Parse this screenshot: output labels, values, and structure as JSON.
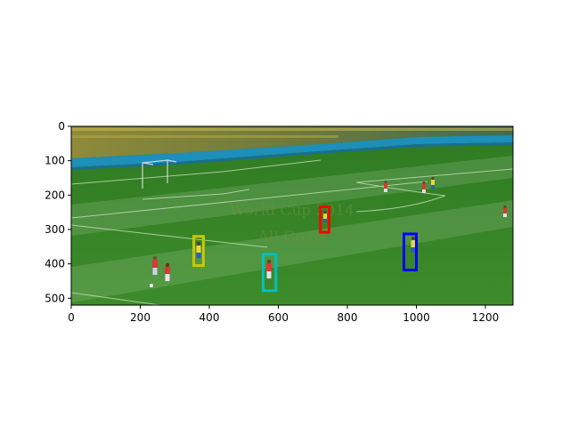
{
  "chart_data": {
    "type": "image",
    "image_width": 1280,
    "image_height": 520,
    "xlim": [
      0,
      1280
    ],
    "ylim": [
      520,
      0
    ],
    "x_ticks": [
      0,
      200,
      400,
      600,
      800,
      1000,
      1200
    ],
    "y_ticks": [
      0,
      100,
      200,
      300,
      400,
      500
    ],
    "xlabel": "",
    "ylabel": "",
    "title": "",
    "watermark_lines": [
      "World Cup 2014",
      "All Goals"
    ],
    "bounding_boxes": [
      {
        "color": "#ff0000",
        "x": [
          722,
          747
        ],
        "y": [
          234,
          308
        ]
      },
      {
        "color": "#c8c800",
        "x": [
          355,
          383
        ],
        "y": [
          320,
          405
        ]
      },
      {
        "color": "#00bfbf",
        "x": [
          556,
          593
        ],
        "y": [
          372,
          478
        ]
      },
      {
        "color": "#0000ff",
        "x": [
          964,
          1000
        ],
        "y": [
          313,
          418
        ]
      }
    ]
  }
}
